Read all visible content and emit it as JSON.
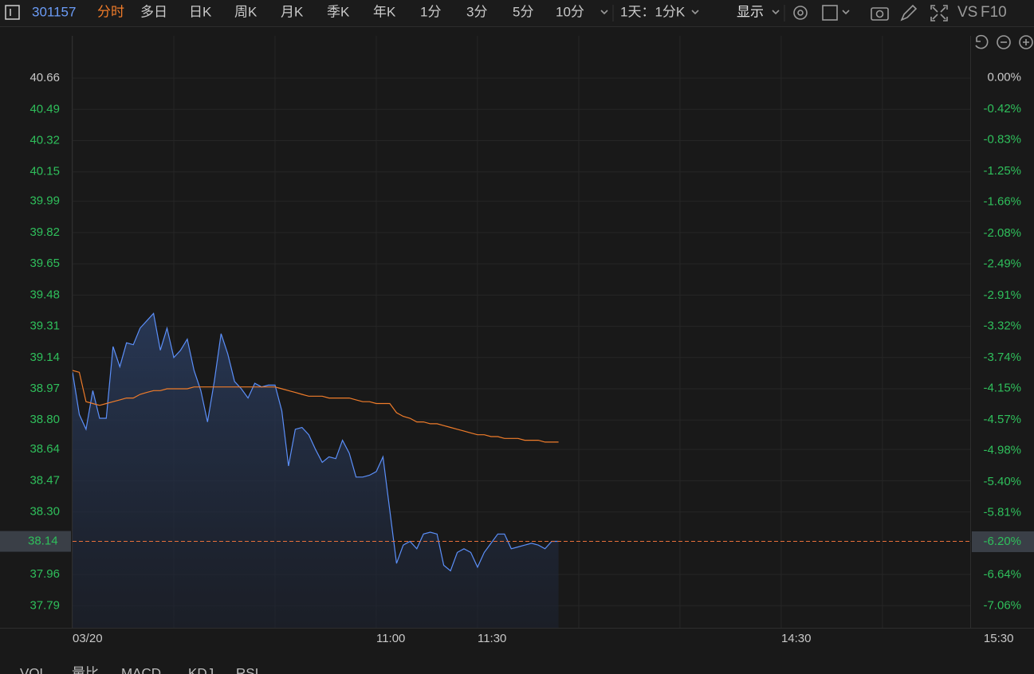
{
  "toolbar": {
    "code": "301157",
    "active_tab": "分时",
    "tabs": [
      "多日",
      "日K",
      "周K",
      "月K",
      "季K",
      "年K",
      "1分",
      "3分",
      "5分",
      "10分"
    ],
    "period": "1天：1分K",
    "display": "显示",
    "vs": "VS",
    "f10": "F10"
  },
  "indicator_tabs": [
    "VOL",
    "量比",
    "MACD",
    "KDJ",
    "RSI"
  ],
  "chart_data": {
    "type": "line",
    "x": [
      0,
      2,
      4,
      6,
      8,
      10,
      12,
      14,
      16,
      18,
      20,
      22,
      24,
      26,
      28,
      30,
      32,
      34,
      36,
      38,
      40,
      42,
      44,
      46,
      48,
      50,
      52,
      54,
      56,
      58,
      60,
      62,
      64,
      66,
      68,
      70,
      72,
      74,
      76,
      78,
      80,
      82,
      84,
      86,
      88,
      90,
      92,
      94,
      96,
      98,
      100,
      102,
      104,
      106,
      108,
      110,
      112,
      114,
      116,
      118,
      120,
      122,
      124,
      126,
      128,
      130,
      132,
      134,
      136,
      138,
      140,
      142,
      144
    ],
    "series": [
      {
        "color": "#5b8ff9",
        "area": true,
        "values": [
          39.06,
          38.83,
          38.75,
          38.96,
          38.81,
          38.81,
          39.2,
          39.09,
          39.22,
          39.21,
          39.3,
          39.34,
          39.38,
          39.18,
          39.3,
          39.14,
          39.18,
          39.24,
          39.07,
          38.96,
          38.79,
          39.01,
          39.27,
          39.16,
          39.01,
          38.97,
          38.92,
          39.0,
          38.98,
          38.99,
          38.99,
          38.85,
          38.55,
          38.75,
          38.76,
          38.72,
          38.64,
          38.57,
          38.6,
          38.59,
          38.69,
          38.62,
          38.49,
          38.49,
          38.5,
          38.52,
          38.6,
          38.31,
          38.02,
          38.12,
          38.14,
          38.1,
          38.18,
          38.19,
          38.18,
          38.01,
          37.98,
          38.08,
          38.1,
          38.08,
          38.0,
          38.08,
          38.13,
          38.18,
          38.18,
          38.1,
          38.11,
          38.12,
          38.13,
          38.12,
          38.1,
          38.14,
          38.14
        ]
      },
      {
        "color": "#f07c2a",
        "area": false,
        "values": [
          39.07,
          39.06,
          38.9,
          38.89,
          38.88,
          38.89,
          38.9,
          38.91,
          38.92,
          38.92,
          38.94,
          38.95,
          38.96,
          38.96,
          38.97,
          38.97,
          38.97,
          38.97,
          38.98,
          38.98,
          38.98,
          38.98,
          38.98,
          38.98,
          38.98,
          38.98,
          38.98,
          38.98,
          38.98,
          38.98,
          38.98,
          38.97,
          38.96,
          38.95,
          38.94,
          38.93,
          38.93,
          38.93,
          38.92,
          38.92,
          38.92,
          38.92,
          38.91,
          38.9,
          38.9,
          38.89,
          38.89,
          38.89,
          38.84,
          38.82,
          38.81,
          38.79,
          38.79,
          38.78,
          38.78,
          38.77,
          38.76,
          38.75,
          38.74,
          38.73,
          38.72,
          38.72,
          38.71,
          38.71,
          38.7,
          38.7,
          38.7,
          38.69,
          38.69,
          38.69,
          38.68,
          38.68,
          38.68
        ]
      }
    ],
    "xlim": [
      0,
      266
    ],
    "xticks": [
      {
        "value": 0,
        "label": "03/20"
      },
      {
        "value": 90,
        "label": "11:00"
      },
      {
        "value": 120,
        "label": "11:30"
      },
      {
        "value": 210,
        "label": "14:30"
      },
      {
        "value": 270,
        "label": "15:30"
      }
    ],
    "xgrid": [
      0,
      30,
      60,
      90,
      120,
      150,
      180,
      210,
      240
    ],
    "ylim": [
      37.67,
      40.89
    ],
    "yticks": [
      40.66,
      40.49,
      40.32,
      40.15,
      39.99,
      39.82,
      39.65,
      39.48,
      39.31,
      39.14,
      38.97,
      {
        "value": 38.8,
        "label": "38.80"
      },
      38.64,
      38.47,
      {
        "value": 38.3,
        "label": "38.30"
      },
      37.96,
      37.79
    ],
    "y2lim": [
      -7.35,
      0.56
    ],
    "y2ticks": [
      {
        "value": 0,
        "label": "0.00%"
      },
      {
        "value": -0.42,
        "label": "-0.42%"
      },
      {
        "value": -0.83,
        "label": "-0.83%"
      },
      {
        "value": -1.25,
        "label": "-1.25%"
      },
      {
        "value": -1.66,
        "label": "-1.66%"
      },
      {
        "value": -2.08,
        "label": "-2.08%"
      },
      {
        "value": -2.49,
        "label": "-2.49%"
      },
      {
        "value": -2.91,
        "label": "-2.91%"
      },
      {
        "value": -3.32,
        "label": "-3.32%"
      },
      {
        "value": -3.74,
        "label": "-3.74%"
      },
      {
        "value": -4.15,
        "label": "-4.15%"
      },
      {
        "value": -4.57,
        "label": "-4.57%"
      },
      {
        "value": -4.98,
        "label": "-4.98%"
      },
      {
        "value": -5.4,
        "label": "-5.40%"
      },
      {
        "value": -5.81,
        "label": "-5.81%"
      },
      {
        "value": -6.64,
        "label": "-6.64%"
      },
      {
        "value": -7.06,
        "label": "-7.06%"
      }
    ],
    "last_price": 38.14,
    "last_change": {
      "value": -6.2,
      "label": "-6.20%"
    },
    "last_line_color": "#e8703a",
    "grid": true,
    "down_color": "#2fbf5b",
    "flat_color": "#c8c8c8"
  }
}
